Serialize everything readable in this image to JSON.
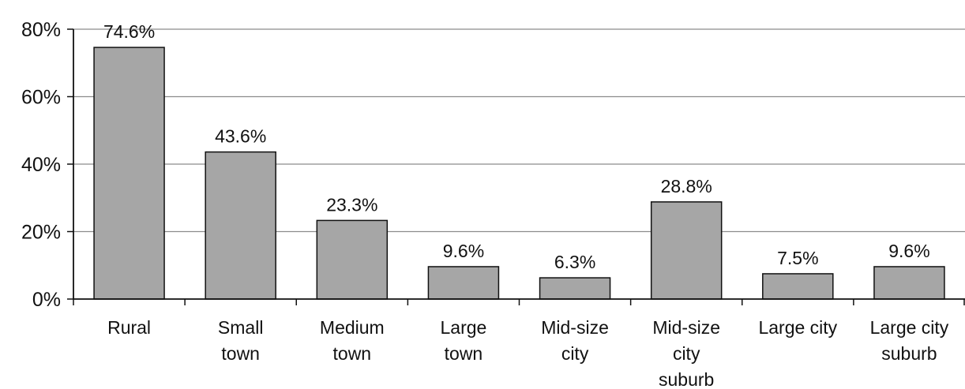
{
  "chart_data": {
    "type": "bar",
    "title": "",
    "xlabel": "",
    "ylabel": "",
    "ylim": [
      0,
      80
    ],
    "y_ticks": [
      0,
      20,
      40,
      60,
      80
    ],
    "y_tick_labels": [
      "0%",
      "20%",
      "40%",
      "60%",
      "80%"
    ],
    "grid": "horizontal",
    "legend": "none",
    "bar_color": "#a6a6a6",
    "bar_stroke": "#111111",
    "categories": [
      [
        "Rural"
      ],
      [
        "Small",
        "town"
      ],
      [
        "Medium",
        "town"
      ],
      [
        "Large",
        "town"
      ],
      [
        "Mid-size",
        "city"
      ],
      [
        "Mid-size",
        "city",
        "suburb"
      ],
      [
        "Large city"
      ],
      [
        "Large city",
        "suburb"
      ]
    ],
    "values": [
      74.6,
      43.6,
      23.3,
      9.6,
      6.3,
      28.8,
      7.5,
      9.6
    ],
    "data_labels": [
      "74.6%",
      "43.6%",
      "23.3%",
      "9.6%",
      "6.3%",
      "28.8%",
      "7.5%",
      "9.6%"
    ]
  }
}
